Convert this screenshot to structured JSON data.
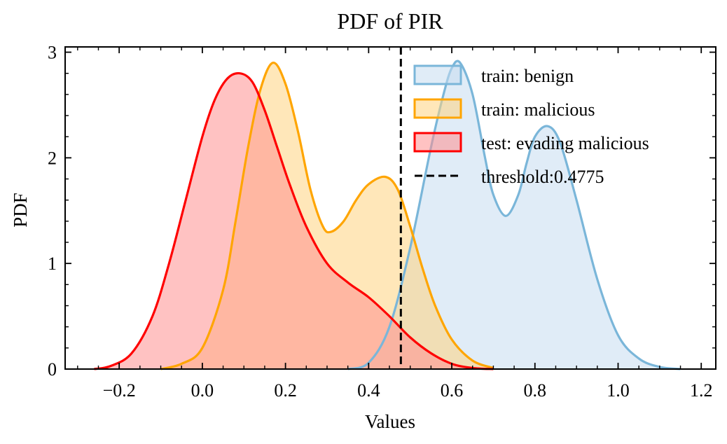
{
  "chart_data": {
    "type": "area",
    "title": "PDF of PIR",
    "xlabel": "Values",
    "ylabel": "PDF",
    "xlim": [
      -0.33,
      1.235
    ],
    "ylim": [
      0,
      3.05
    ],
    "x_ticks": [
      -0.2,
      0.0,
      0.2,
      0.4,
      0.6,
      0.8,
      1.0,
      1.2
    ],
    "x_tick_labels": [
      "−0.2",
      "0.0",
      "0.2",
      "0.4",
      "0.6",
      "0.8",
      "1.0",
      "1.2"
    ],
    "y_ticks": [
      0,
      1,
      2,
      3
    ],
    "y_tick_labels": [
      "0",
      "1",
      "2",
      "3"
    ],
    "grid": false,
    "legend_position": "top-right",
    "series": [
      {
        "name": "train: benign",
        "color": "#7ab6d9",
        "fill": "#c6ddf0",
        "x": [
          0.35,
          0.4,
          0.45,
          0.5,
          0.55,
          0.58,
          0.6,
          0.62,
          0.65,
          0.68,
          0.7,
          0.73,
          0.76,
          0.78,
          0.8,
          0.83,
          0.86,
          0.9,
          0.95,
          1.0,
          1.05,
          1.1,
          1.15
        ],
        "y": [
          0.0,
          0.06,
          0.4,
          1.15,
          2.1,
          2.6,
          2.85,
          2.9,
          2.6,
          2.0,
          1.65,
          1.45,
          1.65,
          1.95,
          2.2,
          2.3,
          2.15,
          1.6,
          0.85,
          0.32,
          0.1,
          0.02,
          0.0
        ]
      },
      {
        "name": "train: malicious",
        "color": "#ffa500",
        "fill": "#ffd480",
        "x": [
          -0.1,
          -0.05,
          0.0,
          0.05,
          0.08,
          0.11,
          0.14,
          0.17,
          0.2,
          0.23,
          0.26,
          0.29,
          0.31,
          0.34,
          0.37,
          0.4,
          0.44,
          0.47,
          0.5,
          0.53,
          0.56,
          0.6,
          0.65,
          0.7
        ],
        "y": [
          0.0,
          0.05,
          0.2,
          0.75,
          1.4,
          2.1,
          2.65,
          2.9,
          2.7,
          2.25,
          1.7,
          1.35,
          1.3,
          1.4,
          1.6,
          1.75,
          1.82,
          1.7,
          1.35,
          0.95,
          0.6,
          0.28,
          0.08,
          0.01
        ]
      },
      {
        "name": "test: evading malicious",
        "color": "#ff0000",
        "fill": "#ff9090",
        "x": [
          -0.26,
          -0.22,
          -0.17,
          -0.12,
          -0.08,
          -0.04,
          0.0,
          0.03,
          0.06,
          0.09,
          0.12,
          0.15,
          0.18,
          0.21,
          0.25,
          0.3,
          0.35,
          0.4,
          0.45,
          0.5,
          0.55,
          0.6,
          0.65,
          0.7
        ],
        "y": [
          0.0,
          0.03,
          0.15,
          0.5,
          1.0,
          1.6,
          2.2,
          2.55,
          2.75,
          2.8,
          2.72,
          2.45,
          2.1,
          1.75,
          1.35,
          1.0,
          0.82,
          0.68,
          0.5,
          0.3,
          0.15,
          0.05,
          0.01,
          0.0
        ]
      }
    ],
    "threshold": {
      "name": "threshold:0.4775",
      "value": 0.4775,
      "color": "#000000",
      "style": "dashed"
    }
  }
}
